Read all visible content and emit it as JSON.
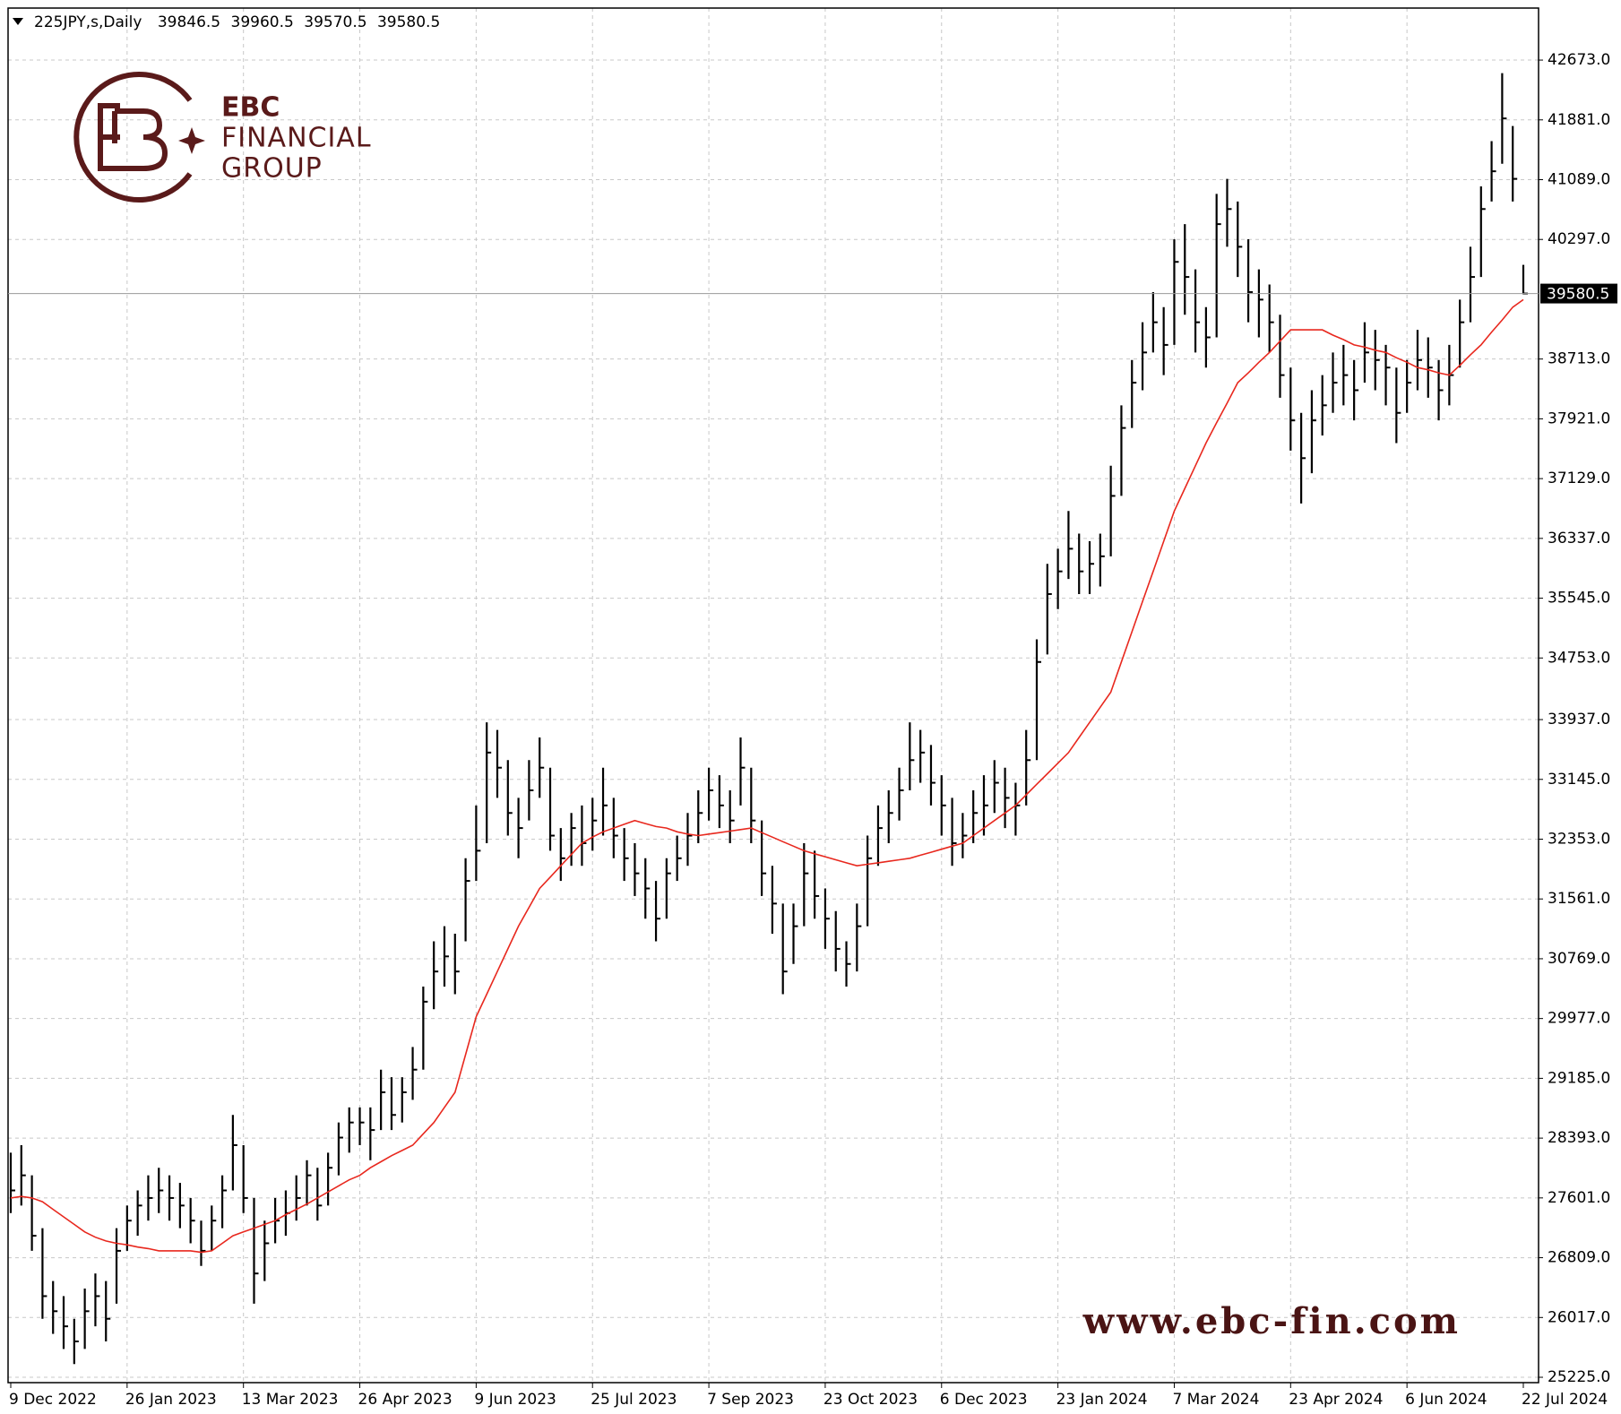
{
  "chart_data": {
    "type": "ohlc",
    "header": {
      "symbol": "225JPY,s,Daily",
      "open": 39846.5,
      "high": 39960.5,
      "low": 39570.5,
      "close": 39580.5
    },
    "categories": [
      "9 Dec 2022",
      null,
      null,
      null,
      null,
      null,
      null,
      null,
      null,
      null,
      null,
      "26 Jan 2023",
      null,
      null,
      null,
      null,
      null,
      null,
      null,
      null,
      null,
      null,
      "13 Mar 2023",
      null,
      null,
      null,
      null,
      null,
      null,
      null,
      null,
      null,
      null,
      "26 Apr 2023",
      null,
      null,
      null,
      null,
      null,
      null,
      null,
      null,
      null,
      null,
      "9 Jun 2023",
      null,
      null,
      null,
      null,
      null,
      null,
      null,
      null,
      null,
      null,
      "25 Jul 2023",
      null,
      null,
      null,
      null,
      null,
      null,
      null,
      null,
      null,
      null,
      "7 Sep 2023",
      null,
      null,
      null,
      null,
      null,
      null,
      null,
      null,
      null,
      null,
      "23 Oct 2023",
      null,
      null,
      null,
      null,
      null,
      null,
      null,
      null,
      null,
      null,
      "6 Dec 2023",
      null,
      null,
      null,
      null,
      null,
      null,
      null,
      null,
      null,
      null,
      "23 Jan 2024",
      null,
      null,
      null,
      null,
      null,
      null,
      null,
      null,
      null,
      null,
      "7 Mar 2024",
      null,
      null,
      null,
      null,
      null,
      null,
      null,
      null,
      null,
      null,
      "23 Apr 2024",
      null,
      null,
      null,
      null,
      null,
      null,
      null,
      null,
      null,
      null,
      "6 Jun 2024",
      null,
      null,
      null,
      null,
      null,
      null,
      null,
      null,
      null,
      null,
      "22 Jul 2024"
    ],
    "high": [
      28200,
      28300,
      27900,
      27200,
      26500,
      26300,
      26000,
      26400,
      26600,
      26500,
      27200,
      27500,
      27700,
      27900,
      28000,
      27900,
      27800,
      27600,
      27300,
      27500,
      27900,
      28700,
      28300,
      27600,
      27300,
      27600,
      27700,
      27900,
      28100,
      28000,
      28200,
      28600,
      28800,
      28800,
      28800,
      29300,
      29200,
      29200,
      29600,
      30400,
      31000,
      31200,
      31100,
      32100,
      32800,
      33900,
      33800,
      33400,
      32900,
      33400,
      33700,
      33300,
      32500,
      32700,
      32800,
      32900,
      33300,
      32900,
      32500,
      32300,
      32100,
      31800,
      32100,
      32400,
      32700,
      33000,
      33300,
      33200,
      33000,
      33700,
      33300,
      32600,
      32000,
      31500,
      31500,
      32300,
      32200,
      31700,
      31400,
      31000,
      31500,
      32400,
      32800,
      33000,
      33300,
      33900,
      33800,
      33600,
      33200,
      32900,
      32700,
      33000,
      33200,
      33400,
      33300,
      33100,
      33800,
      35000,
      36000,
      36200,
      36700,
      36400,
      36300,
      36400,
      37300,
      38100,
      38700,
      39200,
      39600,
      39400,
      40300,
      40500,
      39900,
      39400,
      40900,
      41100,
      40800,
      40300,
      39900,
      39700,
      39300,
      38600,
      38000,
      38300,
      38500,
      38800,
      38900,
      38700,
      39200,
      39100,
      38900,
      38600,
      38700,
      39100,
      39000,
      38700,
      38900,
      39500,
      40200,
      41000,
      41600,
      42500,
      41800,
      39960.5
    ],
    "low": [
      27400,
      27500,
      26900,
      26000,
      25800,
      25600,
      25400,
      25600,
      25900,
      25700,
      26200,
      26900,
      27100,
      27300,
      27400,
      27300,
      27200,
      27000,
      26700,
      26900,
      27200,
      27700,
      27400,
      26200,
      26500,
      27000,
      27100,
      27300,
      27500,
      27300,
      27500,
      27900,
      28200,
      28300,
      28100,
      28500,
      28500,
      28600,
      28900,
      29300,
      30100,
      30400,
      30300,
      31000,
      31800,
      32300,
      32900,
      32400,
      32100,
      32600,
      32900,
      32200,
      31800,
      32000,
      32000,
      32200,
      32400,
      32100,
      31800,
      31600,
      31300,
      31000,
      31300,
      31800,
      32000,
      32300,
      32600,
      32500,
      32300,
      32800,
      32300,
      31600,
      31100,
      30300,
      30700,
      31200,
      31300,
      30900,
      30600,
      30400,
      30600,
      31200,
      32000,
      32300,
      32600,
      33000,
      33100,
      32800,
      32400,
      32000,
      32100,
      32300,
      32400,
      32700,
      32500,
      32400,
      32800,
      33400,
      34800,
      35400,
      35800,
      35600,
      35600,
      35700,
      36100,
      36900,
      37800,
      38300,
      38800,
      38500,
      38900,
      39300,
      38800,
      38600,
      39000,
      40200,
      39800,
      39200,
      39000,
      38800,
      38200,
      37500,
      36800,
      37200,
      37700,
      38000,
      38100,
      37900,
      38400,
      38300,
      38100,
      37600,
      38000,
      38300,
      38200,
      37900,
      38100,
      38600,
      39200,
      39800,
      40800,
      41300,
      40800,
      39570.5
    ],
    "close": [
      27700,
      27900,
      27100,
      26300,
      26100,
      25900,
      25700,
      26100,
      26300,
      26000,
      26900,
      27300,
      27500,
      27600,
      27700,
      27600,
      27500,
      27300,
      26900,
      27300,
      27700,
      28300,
      27600,
      26600,
      27000,
      27300,
      27400,
      27600,
      27900,
      27500,
      28000,
      28400,
      28600,
      28600,
      28500,
      29000,
      28700,
      29000,
      29300,
      30200,
      30600,
      30800,
      30600,
      31800,
      32200,
      33500,
      33300,
      32700,
      32500,
      33000,
      33300,
      32400,
      32100,
      32500,
      32300,
      32600,
      32800,
      32400,
      32100,
      31900,
      31700,
      31300,
      31900,
      32100,
      32400,
      32700,
      33000,
      32800,
      32600,
      33300,
      32600,
      31900,
      31500,
      30600,
      31200,
      31900,
      31600,
      31300,
      30900,
      30700,
      31200,
      32100,
      32500,
      32700,
      33000,
      33400,
      33500,
      33100,
      32800,
      32300,
      32400,
      32700,
      32800,
      33100,
      32900,
      32800,
      33400,
      34700,
      35600,
      35900,
      36200,
      35900,
      36000,
      36100,
      36900,
      37800,
      38400,
      38800,
      39200,
      38900,
      40000,
      39800,
      39200,
      39000,
      40500,
      40700,
      40200,
      39600,
      39500,
      39200,
      38500,
      37900,
      37400,
      37900,
      38100,
      38400,
      38500,
      38300,
      38800,
      38700,
      38600,
      38000,
      38400,
      38700,
      38600,
      38300,
      38500,
      39200,
      39800,
      40700,
      41200,
      41900,
      41100,
      39580.5
    ],
    "bar_color": "#000000",
    "ma": {
      "color": "#e8281e",
      "values": [
        27600,
        27620,
        27600,
        27550,
        27450,
        27350,
        27250,
        27150,
        27080,
        27030,
        27000,
        26980,
        26950,
        26930,
        26900,
        26900,
        26900,
        26900,
        26880,
        26900,
        27000,
        27100,
        27150,
        27200,
        27250,
        27300,
        27380,
        27450,
        27520,
        27600,
        27680,
        27760,
        27840,
        27900,
        28000,
        28080,
        28160,
        28230,
        28300,
        28450,
        28600,
        28800,
        29000,
        29500,
        30000,
        30300,
        30600,
        30900,
        31200,
        31450,
        31700,
        31850,
        32000,
        32150,
        32300,
        32380,
        32450,
        32500,
        32550,
        32600,
        32560,
        32520,
        32500,
        32450,
        32420,
        32400,
        32420,
        32440,
        32460,
        32480,
        32500,
        32440,
        32380,
        32320,
        32260,
        32200,
        32160,
        32120,
        32080,
        32040,
        32000,
        32020,
        32040,
        32060,
        32080,
        32100,
        32140,
        32180,
        32220,
        32260,
        32300,
        32400,
        32500,
        32600,
        32700,
        32800,
        32940,
        33080,
        33220,
        33360,
        33500,
        33700,
        33900,
        34100,
        34300,
        34700,
        35100,
        35500,
        35900,
        36300,
        36700,
        37000,
        37300,
        37600,
        37870,
        38130,
        38400,
        38530,
        38670,
        38800,
        38950,
        39100,
        39100,
        39100,
        39100,
        39030,
        38970,
        38900,
        38870,
        38830,
        38800,
        38730,
        38670,
        38600,
        38570,
        38530,
        38500,
        38630,
        38770,
        38900,
        39070,
        39230,
        39400,
        39500
      ]
    },
    "current_price": 39580.5,
    "ylim": [
      25154,
      43362
    ],
    "yticks": [
      {
        "value": 42673,
        "label": "42673.0"
      },
      {
        "value": 41881,
        "label": "41881.0"
      },
      {
        "value": 41089,
        "label": "41089.0"
      },
      {
        "value": 40297,
        "label": "40297.0"
      },
      {
        "value": 38713,
        "label": "38713.0"
      },
      {
        "value": 37921,
        "label": "37921.0"
      },
      {
        "value": 37129,
        "label": "37129.0"
      },
      {
        "value": 36337,
        "label": "36337.0"
      },
      {
        "value": 35545,
        "label": "35545.0"
      },
      {
        "value": 34753,
        "label": "34753.0"
      },
      {
        "value": 33937,
        "label": "33937.0"
      },
      {
        "value": 33145,
        "label": "33145.0"
      },
      {
        "value": 32353,
        "label": "32353.0"
      },
      {
        "value": 31561,
        "label": "31561.0"
      },
      {
        "value": 30769,
        "label": "30769.0"
      },
      {
        "value": 29977,
        "label": "29977.0"
      },
      {
        "value": 29185,
        "label": "29185.0"
      },
      {
        "value": 28393,
        "label": "28393.0"
      },
      {
        "value": 27601,
        "label": "27601.0"
      },
      {
        "value": 26809,
        "label": "26809.0"
      },
      {
        "value": 26017,
        "label": "26017.0"
      },
      {
        "value": 25225,
        "label": "25225.0"
      }
    ],
    "grid": true
  },
  "watermark": {
    "brand": "EBC",
    "line2": "FINANCIAL",
    "line3": "GROUP",
    "url": "www.ebc-fin.com"
  }
}
